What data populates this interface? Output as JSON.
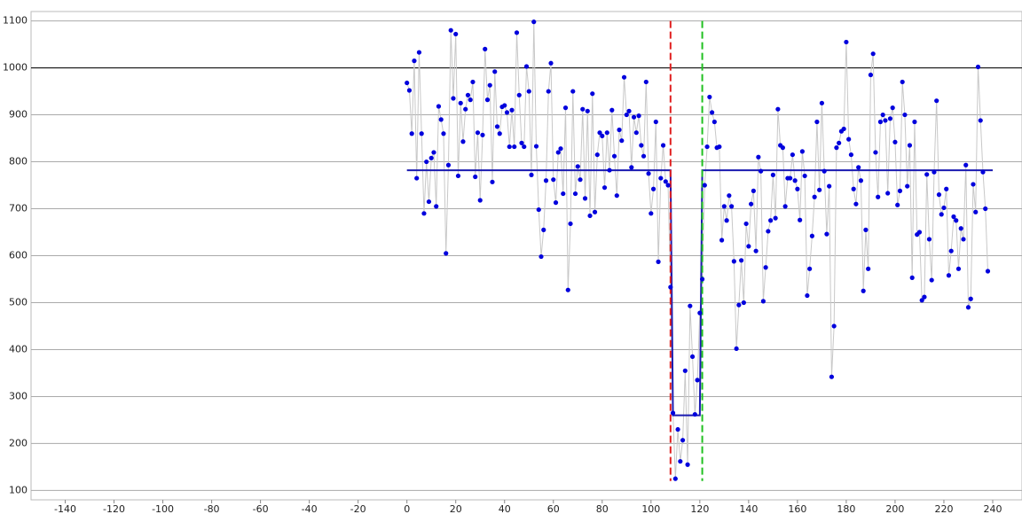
{
  "chart_data": {
    "type": "scatter-line",
    "xlim": [
      -154,
      252
    ],
    "ylim": [
      80,
      1120
    ],
    "xticks": [
      -140,
      -120,
      -100,
      -80,
      -60,
      -40,
      -20,
      0,
      20,
      40,
      60,
      80,
      100,
      120,
      140,
      160,
      180,
      200,
      220,
      240
    ],
    "yticks": [
      100,
      200,
      300,
      400,
      500,
      600,
      700,
      800,
      900,
      1000,
      1100
    ],
    "grid": true,
    "hlines": [
      {
        "y": 1000,
        "color": "#000000"
      }
    ],
    "vlines": [
      {
        "x": 108,
        "color": "#e02020"
      },
      {
        "x": 121,
        "color": "#20c020"
      }
    ],
    "series": [
      {
        "color": "#0000dd",
        "line_color": "#c8c8c8",
        "x": [
          0,
          1,
          2,
          3,
          4,
          5,
          6,
          7,
          8,
          9,
          10,
          11,
          12,
          13,
          14,
          15,
          16,
          17,
          18,
          19,
          20,
          21,
          22,
          23,
          24,
          25,
          26,
          27,
          28,
          29,
          30,
          31,
          32,
          33,
          34,
          35,
          36,
          37,
          38,
          39,
          40,
          41,
          42,
          43,
          44,
          45,
          46,
          47,
          48,
          49,
          50,
          51,
          52,
          53,
          54,
          55,
          56,
          57,
          58,
          59,
          60,
          61,
          62,
          63,
          64,
          65,
          66,
          67,
          68,
          69,
          70,
          71,
          72,
          73,
          74,
          75,
          76,
          77,
          78,
          79,
          80,
          81,
          82,
          83,
          84,
          85,
          86,
          87,
          88,
          89,
          90,
          91,
          92,
          93,
          94,
          95,
          96,
          97,
          98,
          99,
          100,
          101,
          102,
          103,
          104,
          105,
          106,
          107,
          108,
          109,
          110,
          111,
          112,
          113,
          114,
          115,
          116,
          117,
          118,
          119,
          120,
          121,
          122,
          123,
          124,
          125,
          126,
          127,
          128,
          129,
          130,
          131,
          132,
          133,
          134,
          135,
          136,
          137,
          138,
          139,
          140,
          141,
          142,
          143,
          144,
          145,
          146,
          147,
          148,
          149,
          150,
          151,
          152,
          153,
          154,
          155,
          156,
          157,
          158,
          159,
          160,
          161,
          162,
          163,
          164,
          165,
          166,
          167,
          168,
          169,
          170,
          171,
          172,
          173,
          174,
          175,
          176,
          177,
          178,
          179,
          180,
          181,
          182,
          183,
          184,
          185,
          186,
          187,
          188,
          189,
          190,
          191,
          192,
          193,
          194,
          195,
          196,
          197,
          198,
          199,
          200,
          201,
          202,
          203,
          204,
          205,
          206,
          207,
          208,
          209,
          210,
          211,
          212,
          213,
          214,
          215,
          216,
          217,
          218,
          219,
          220,
          221,
          222,
          223,
          224,
          225,
          226,
          227,
          228,
          229,
          230,
          231,
          232,
          233,
          234,
          235,
          236,
          237,
          238
        ],
        "values": [
          968,
          952,
          860,
          1015,
          765,
          1033,
          860,
          690,
          800,
          715,
          808,
          820,
          705,
          918,
          890,
          860,
          605,
          793,
          1080,
          935,
          1072,
          770,
          925,
          843,
          912,
          942,
          932,
          970,
          768,
          862,
          718,
          857,
          1040,
          932,
          963,
          757,
          992,
          875,
          860,
          917,
          920,
          905,
          832,
          910,
          832,
          1075,
          942,
          840,
          832,
          1003,
          950,
          772,
          1098,
          833,
          698,
          598,
          655,
          760,
          950,
          1010,
          762,
          713,
          820,
          828,
          732,
          915,
          527,
          668,
          950,
          732,
          790,
          762,
          912,
          722,
          908,
          685,
          945,
          693,
          815,
          862,
          855,
          745,
          862,
          782,
          910,
          812,
          728,
          868,
          845,
          980,
          900,
          908,
          788,
          895,
          862,
          898,
          835,
          812,
          970,
          775,
          690,
          742,
          885,
          587,
          765,
          835,
          758,
          750,
          533,
          265,
          125,
          230,
          162,
          207,
          355,
          155,
          493,
          385,
          262,
          335,
          478,
          550,
          750,
          832,
          938,
          905,
          885,
          830,
          832,
          633,
          705,
          675,
          728,
          705,
          588,
          402,
          495,
          590,
          500,
          668,
          620,
          710,
          738,
          610,
          810,
          780,
          503,
          575,
          652,
          675,
          772,
          680,
          912,
          835,
          830,
          705,
          765,
          765,
          815,
          760,
          742,
          676,
          822,
          770,
          515,
          572,
          642,
          725,
          885,
          740,
          925,
          780,
          646,
          748,
          342,
          450,
          830,
          840,
          865,
          870,
          1055,
          848,
          815,
          742,
          710,
          788,
          760,
          525,
          655,
          572,
          985,
          1030,
          820,
          725,
          885,
          900,
          888,
          733,
          892,
          915,
          842,
          708,
          738,
          970,
          900,
          748,
          835,
          553,
          885,
          645,
          650,
          505,
          512,
          773,
          635,
          548,
          778,
          930,
          730,
          688,
          702,
          742,
          558,
          610,
          683,
          675,
          572,
          658,
          635,
          793,
          490,
          508,
          752,
          693,
          1002,
          888,
          778,
          700,
          567
        ]
      },
      {
        "color": "#1a1ab0",
        "style": "line",
        "x": [
          0,
          108,
          109,
          120,
          121,
          240
        ],
        "values": [
          782,
          782,
          260,
          260,
          782,
          782
        ]
      }
    ]
  }
}
